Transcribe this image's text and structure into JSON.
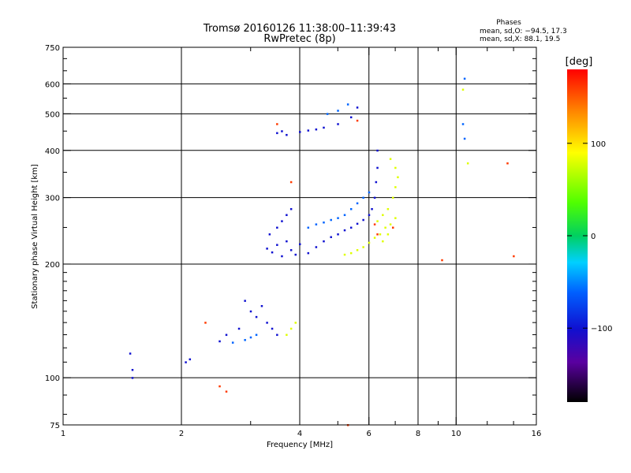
{
  "chart_data": {
    "type": "scatter",
    "title": "Tromsø 20160126 11:38:00–11:39:43",
    "subtitle": "RwPretec (8p)",
    "phases_block": {
      "heading": "Phases",
      "line_o": "mean, sd,O: −94.5, 17.3",
      "line_x": "mean, sd,X:  88.1, 19.5"
    },
    "xlabel": "Frequency [MHz]",
    "ylabel": "Stationary phase Virtual Height [km]",
    "x_scale": "log",
    "y_scale": "log",
    "xlim": [
      1,
      16
    ],
    "ylim": [
      75,
      750
    ],
    "x_ticks": [
      1,
      2,
      4,
      6,
      8,
      10,
      16
    ],
    "x_tick_labels": [
      "1",
      "2",
      "4",
      "6",
      "8",
      "10",
      "16"
    ],
    "x_minor_ticks": [
      3,
      5,
      7,
      9,
      12,
      14
    ],
    "y_ticks": [
      75,
      100,
      200,
      300,
      400,
      500,
      600,
      750
    ],
    "y_tick_labels": [
      "75",
      "100",
      "200",
      "300",
      "400",
      "500",
      "600",
      "750"
    ],
    "y_minor_ticks": [
      80,
      90,
      110,
      120,
      130,
      140,
      150,
      160,
      170,
      180,
      190,
      250,
      350,
      450,
      550,
      650,
      700
    ],
    "grid": true,
    "colorbar": {
      "label": "[deg]",
      "range": [
        -180,
        180
      ],
      "ticks": [
        100,
        0,
        -100
      ],
      "tick_labels": [
        "100",
        "0",
        "−100"
      ],
      "position": "right"
    },
    "series": [
      {
        "phase": -100,
        "points": [
          [
            3.3,
            220
          ],
          [
            3.4,
            215
          ],
          [
            3.5,
            225
          ],
          [
            3.6,
            210
          ],
          [
            3.7,
            230
          ],
          [
            3.8,
            218
          ],
          [
            3.9,
            212
          ],
          [
            4.0,
            226
          ],
          [
            4.2,
            214
          ],
          [
            4.4,
            222
          ],
          [
            4.6,
            230
          ],
          [
            4.8,
            236
          ],
          [
            5.0,
            240
          ],
          [
            5.2,
            246
          ],
          [
            5.4,
            250
          ],
          [
            5.6,
            256
          ],
          [
            5.8,
            262
          ],
          [
            6.0,
            270
          ],
          [
            6.1,
            280
          ],
          [
            6.2,
            300
          ],
          [
            6.25,
            330
          ],
          [
            6.3,
            360
          ],
          [
            6.3,
            400
          ],
          [
            3.35,
            240
          ],
          [
            3.5,
            250
          ],
          [
            3.6,
            260
          ],
          [
            3.7,
            270
          ],
          [
            3.8,
            280
          ],
          [
            3.5,
            445
          ],
          [
            3.6,
            450
          ],
          [
            3.7,
            440
          ],
          [
            4.0,
            448
          ],
          [
            4.2,
            452
          ],
          [
            4.4,
            455
          ],
          [
            4.6,
            460
          ],
          [
            5.0,
            470
          ],
          [
            5.4,
            490
          ],
          [
            5.6,
            520
          ],
          [
            3.0,
            150
          ],
          [
            3.1,
            145
          ],
          [
            3.2,
            155
          ],
          [
            3.3,
            140
          ],
          [
            3.4,
            135
          ],
          [
            3.5,
            130
          ],
          [
            2.9,
            160
          ],
          [
            2.8,
            135
          ],
          [
            2.6,
            130
          ],
          [
            2.5,
            125
          ],
          [
            2.1,
            112
          ],
          [
            2.05,
            110
          ],
          [
            1.5,
            100
          ],
          [
            1.5,
            105
          ],
          [
            1.48,
            116
          ]
        ]
      },
      {
        "phase": -60,
        "points": [
          [
            4.6,
            258
          ],
          [
            4.8,
            262
          ],
          [
            5.0,
            265
          ],
          [
            5.2,
            270
          ],
          [
            5.4,
            280
          ],
          [
            5.6,
            290
          ],
          [
            5.8,
            300
          ],
          [
            6.0,
            310
          ],
          [
            4.2,
            250
          ],
          [
            4.4,
            255
          ],
          [
            3.0,
            128
          ],
          [
            3.1,
            130
          ],
          [
            2.9,
            126
          ],
          [
            2.7,
            124
          ],
          [
            4.7,
            500
          ],
          [
            5.0,
            510
          ],
          [
            5.3,
            530
          ],
          [
            10.5,
            620
          ],
          [
            10.4,
            470
          ],
          [
            10.5,
            430
          ]
        ]
      },
      {
        "phase": 80,
        "points": [
          [
            6.3,
            260
          ],
          [
            6.5,
            270
          ],
          [
            6.7,
            280
          ],
          [
            6.9,
            300
          ],
          [
            7.0,
            320
          ],
          [
            6.4,
            240
          ],
          [
            6.6,
            250
          ],
          [
            6.8,
            255
          ],
          [
            7.0,
            265
          ],
          [
            6.5,
            230
          ],
          [
            6.7,
            240
          ],
          [
            6.9,
            250
          ],
          [
            6.2,
            235
          ],
          [
            6.0,
            228
          ],
          [
            5.8,
            222
          ],
          [
            5.6,
            218
          ],
          [
            5.4,
            214
          ],
          [
            5.2,
            212
          ],
          [
            7.1,
            340
          ],
          [
            7.0,
            360
          ],
          [
            6.8,
            380
          ],
          [
            3.9,
            140
          ],
          [
            3.8,
            135
          ],
          [
            3.7,
            130
          ],
          [
            10.4,
            580
          ],
          [
            10.7,
            370
          ]
        ]
      },
      {
        "phase": 160,
        "points": [
          [
            2.3,
            140
          ],
          [
            2.6,
            92
          ],
          [
            2.5,
            95
          ],
          [
            3.5,
            470
          ],
          [
            3.8,
            330
          ],
          [
            6.3,
            240
          ],
          [
            6.2,
            255
          ],
          [
            6.9,
            250
          ],
          [
            5.6,
            480
          ],
          [
            13.5,
            370
          ],
          [
            14.0,
            210
          ],
          [
            9.2,
            205
          ],
          [
            5.3,
            75
          ]
        ]
      }
    ]
  }
}
